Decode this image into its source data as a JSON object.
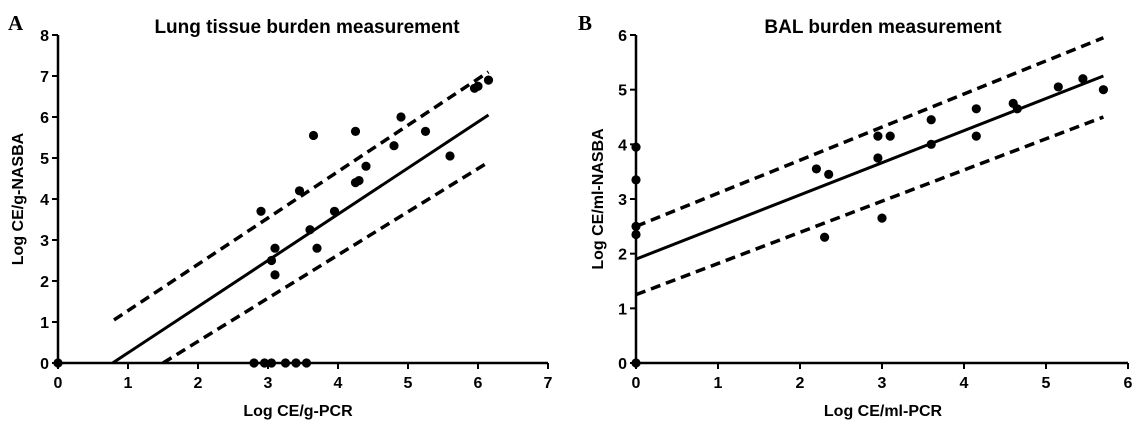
{
  "chart_data": [
    {
      "panel": "A",
      "type": "scatter",
      "title": "Lung tissue burden measurement",
      "xlabel": "Log CE/g-PCR",
      "ylabel": "Log CE/g-NASBA",
      "xlim": [
        0,
        7
      ],
      "ylim": [
        0,
        8
      ],
      "xticks": [
        "0",
        "1",
        "2",
        "3",
        "4",
        "5",
        "6",
        "7"
      ],
      "yticks": [
        "0",
        "1",
        "2",
        "3",
        "4",
        "5",
        "6",
        "7",
        "8"
      ],
      "grid": false,
      "legend": "none",
      "points": [
        [
          0.0,
          0.0
        ],
        [
          2.8,
          0.0
        ],
        [
          2.95,
          0.0
        ],
        [
          3.05,
          0.0
        ],
        [
          3.25,
          0.0
        ],
        [
          3.4,
          0.0
        ],
        [
          3.55,
          0.0
        ],
        [
          2.9,
          3.7
        ],
        [
          3.05,
          2.5
        ],
        [
          3.1,
          2.8
        ],
        [
          3.1,
          2.15
        ],
        [
          3.45,
          4.2
        ],
        [
          3.6,
          3.25
        ],
        [
          3.65,
          5.55
        ],
        [
          3.7,
          2.8
        ],
        [
          3.95,
          3.7
        ],
        [
          4.25,
          5.65
        ],
        [
          4.25,
          4.4
        ],
        [
          4.3,
          4.45
        ],
        [
          4.4,
          4.8
        ],
        [
          4.8,
          5.3
        ],
        [
          4.9,
          6.0
        ],
        [
          5.25,
          5.65
        ],
        [
          5.6,
          5.05
        ],
        [
          5.95,
          6.7
        ],
        [
          6.0,
          6.75
        ],
        [
          6.15,
          6.9
        ]
      ],
      "regression_line": [
        [
          0.78,
          0.0
        ],
        [
          6.15,
          6.05
        ]
      ],
      "ci_upper": [
        [
          0.8,
          1.05
        ],
        [
          6.15,
          7.1
        ]
      ],
      "ci_lower": [
        [
          1.5,
          0.0
        ],
        [
          6.15,
          4.9
        ]
      ]
    },
    {
      "panel": "B",
      "type": "scatter",
      "title": "BAL burden measurement",
      "xlabel": "Log CE/ml-PCR",
      "ylabel": "Log CE/ml-NASBA",
      "xlim": [
        0,
        6
      ],
      "ylim": [
        0,
        6
      ],
      "xticks": [
        "0",
        "1",
        "2",
        "3",
        "4",
        "5",
        "6"
      ],
      "yticks": [
        "0",
        "1",
        "2",
        "3",
        "4",
        "5",
        "6"
      ],
      "grid": false,
      "legend": "none",
      "points": [
        [
          0.0,
          0.0
        ],
        [
          0.0,
          2.35
        ],
        [
          0.0,
          2.5
        ],
        [
          0.0,
          3.35
        ],
        [
          0.0,
          3.95
        ],
        [
          2.2,
          3.55
        ],
        [
          2.3,
          2.3
        ],
        [
          2.35,
          3.45
        ],
        [
          2.95,
          4.15
        ],
        [
          2.95,
          3.75
        ],
        [
          3.0,
          2.65
        ],
        [
          3.1,
          4.15
        ],
        [
          3.6,
          4.0
        ],
        [
          3.6,
          4.45
        ],
        [
          4.15,
          4.65
        ],
        [
          4.15,
          4.15
        ],
        [
          4.6,
          4.75
        ],
        [
          4.65,
          4.65
        ],
        [
          5.15,
          5.05
        ],
        [
          5.45,
          5.2
        ],
        [
          5.7,
          5.0
        ]
      ],
      "regression_line": [
        [
          0.0,
          1.9
        ],
        [
          5.7,
          5.25
        ]
      ],
      "ci_upper": [
        [
          0.0,
          2.5
        ],
        [
          5.7,
          5.95
        ]
      ],
      "ci_lower": [
        [
          0.0,
          1.25
        ],
        [
          5.7,
          4.5
        ]
      ]
    }
  ]
}
